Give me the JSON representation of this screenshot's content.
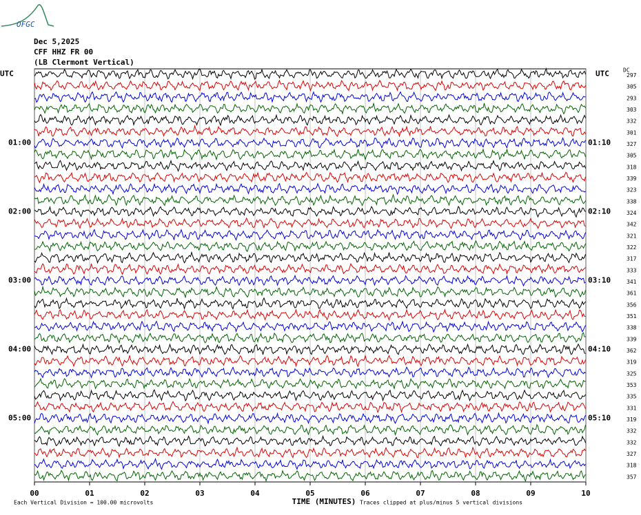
{
  "chart_data": {
    "type": "helicorder",
    "logo": "OFGC",
    "title_lines": [
      "Dec 5,2025",
      "CFF HHZ FR 00",
      "(LB  Clermont Vertical)"
    ],
    "dc_header": "DC",
    "xlabel": "TIME (MINUTES)",
    "footer_left": "Each Vertical Division =  100.00 microvolts",
    "footer_right": "Traces clipped at plus/minus 5 vertical divisions",
    "xlim": [
      0,
      10
    ],
    "xticks": [
      {
        "value": 0,
        "label": "00"
      },
      {
        "value": 1,
        "label": "01"
      },
      {
        "value": 2,
        "label": "02"
      },
      {
        "value": 3,
        "label": "03"
      },
      {
        "value": 4,
        "label": "04"
      },
      {
        "value": 5,
        "label": "05"
      },
      {
        "value": 6,
        "label": "06"
      },
      {
        "value": 7,
        "label": "07"
      },
      {
        "value": 8,
        "label": "08"
      },
      {
        "value": 9,
        "label": "09"
      },
      {
        "value": 10,
        "label": "10"
      }
    ],
    "grid": true,
    "trace_colors": [
      "#000000",
      "#e00000",
      "#0000e0",
      "#006400"
    ],
    "left_labels": [
      "UTC",
      null,
      null,
      null,
      null,
      null,
      "01:00",
      null,
      null,
      null,
      null,
      null,
      "02:00",
      null,
      null,
      null,
      null,
      null,
      "03:00",
      null,
      null,
      null,
      null,
      null,
      "04:00",
      null,
      null,
      null,
      null,
      null,
      "05:00",
      null,
      null,
      null,
      null,
      null
    ],
    "right_labels": [
      "UTC",
      null,
      null,
      null,
      null,
      null,
      "01:10",
      null,
      null,
      null,
      null,
      null,
      "02:10",
      null,
      null,
      null,
      null,
      null,
      "03:10",
      null,
      null,
      null,
      null,
      null,
      "04:10",
      null,
      null,
      null,
      null,
      null,
      "05:10",
      null,
      null,
      null,
      null,
      null
    ],
    "dc_values": [
      297,
      305,
      293,
      303,
      332,
      301,
      327,
      305,
      318,
      339,
      323,
      338,
      324,
      342,
      321,
      322,
      317,
      333,
      341,
      361,
      356,
      351,
      338,
      339,
      362,
      319,
      325,
      353,
      335,
      331,
      319,
      332,
      332,
      327,
      318,
      357
    ]
  }
}
